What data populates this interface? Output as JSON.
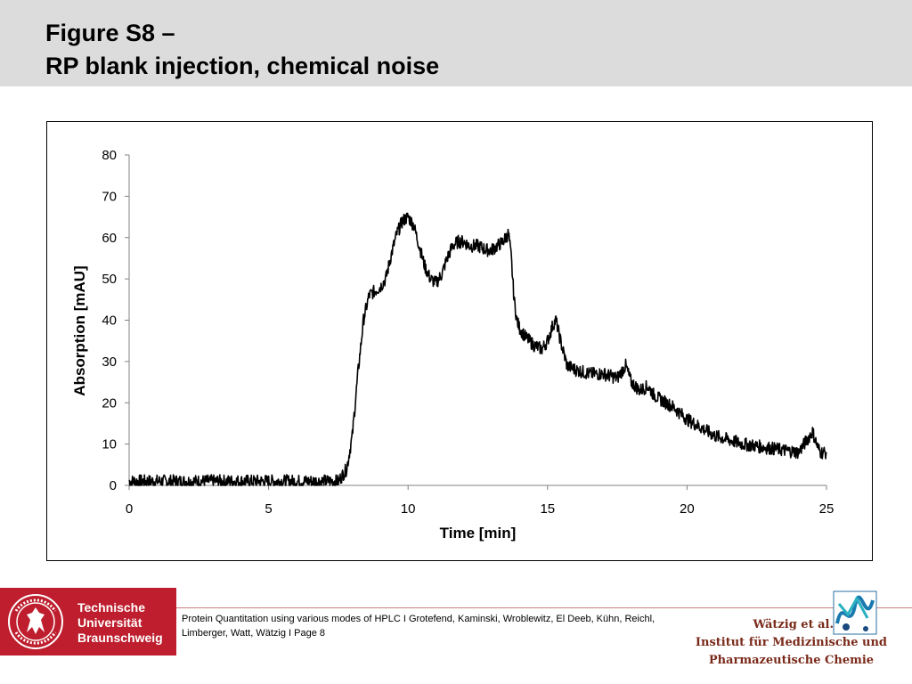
{
  "header": {
    "title_line1": "Figure S8 –",
    "title_line2": "RP blank injection, chemical noise"
  },
  "chart_data": {
    "type": "line",
    "title": "",
    "xlabel": "Time [min]",
    "ylabel": "Absorption [mAU]",
    "xlim": [
      0,
      25
    ],
    "ylim": [
      0,
      80
    ],
    "xticks": [
      "0",
      "5",
      "10",
      "15",
      "20",
      "25"
    ],
    "yticks": [
      "0",
      "10",
      "20",
      "30",
      "40",
      "50",
      "60",
      "70",
      "80"
    ],
    "grid": false,
    "legend": "none",
    "series": [
      {
        "color": "#000000",
        "x": [
          0,
          2,
          4,
          6,
          7,
          7.5,
          7.8,
          8.0,
          8.2,
          8.4,
          8.6,
          8.8,
          9.0,
          9.2,
          9.4,
          9.6,
          9.8,
          10.0,
          10.2,
          10.4,
          10.6,
          10.8,
          11.0,
          11.2,
          11.4,
          11.6,
          11.8,
          12.0,
          12.2,
          12.5,
          12.8,
          13.0,
          13.2,
          13.4,
          13.6,
          13.7,
          13.8,
          13.9,
          14.0,
          14.2,
          14.5,
          14.8,
          15.0,
          15.2,
          15.3,
          15.5,
          15.7,
          16.0,
          16.5,
          17.0,
          17.5,
          17.8,
          18.0,
          18.3,
          18.6,
          18.8,
          19.0,
          19.5,
          20.0,
          20.5,
          21.0,
          22.0,
          23.0,
          24.0,
          24.3,
          24.5,
          24.7,
          24.8,
          25.0
        ],
        "y": [
          1,
          1,
          1,
          1,
          1,
          1,
          4,
          12,
          27,
          40,
          46,
          47,
          48,
          50,
          56,
          61,
          64,
          65,
          63,
          58,
          53,
          50,
          49,
          51,
          55,
          58,
          59,
          59,
          58,
          58,
          57,
          57,
          58,
          59,
          61,
          55,
          45,
          40,
          38,
          36,
          34,
          33,
          35,
          39,
          40,
          34,
          29,
          28,
          27,
          27,
          26,
          29,
          25,
          23,
          24,
          22,
          21,
          19,
          16,
          14,
          12,
          10,
          9,
          8,
          11,
          13,
          9,
          8,
          8
        ]
      }
    ]
  },
  "footer": {
    "university_line1": "Technische",
    "university_line2": "Universität",
    "university_line3": "Braunschweig",
    "credit_line1": "Protein Quantitation using various modes of HPLC I Grotefend, Kaminski, Wroblewitz, El Deeb, Kühn, Reichl,",
    "credit_line2": "Limberger, Watt, Wätzig I Page 8",
    "inst_line1": "Wätzig et al.",
    "inst_line2": "Institut für Medizinische und",
    "inst_line3": "Pharmazeutische Chemie",
    "brand_color": "#be1e2d"
  }
}
